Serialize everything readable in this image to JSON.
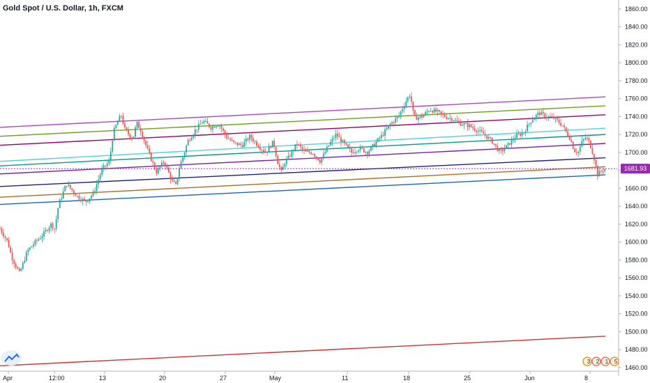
{
  "chart_data": {
    "type": "candlestick",
    "title": "Gold Spot / U.S. Dollar, 1h, FXCM",
    "y_ticks": [
      1460,
      1480,
      1500,
      1520,
      1540,
      1560,
      1580,
      1600,
      1620,
      1640,
      1660,
      1680,
      1700,
      1720,
      1740,
      1760,
      1780,
      1800,
      1820,
      1840,
      1860
    ],
    "y_tick_labels": [
      "1460.00",
      "1480.00",
      "1500.00",
      "1520.00",
      "1540.00",
      "1560.00",
      "1580.00",
      "1600.00",
      "1620.00",
      "1640.00",
      "1660.00",
      "1680.00",
      "1700.00",
      "1720.00",
      "1740.00",
      "1760.00",
      "1780.00",
      "1800.00",
      "1820.00",
      "1840.00",
      "1860.00"
    ],
    "ylim": [
      1456,
      1870
    ],
    "x_ticks": [
      "Apr",
      "12:00",
      "13",
      "20",
      "27",
      "May",
      "11",
      "18",
      "25",
      "Jun",
      "8"
    ],
    "current_price": 1681.93,
    "current_price_label": "1681.93",
    "grid": false,
    "candle_up_color": "#26a69a",
    "candle_down_color": "#ef5350",
    "price_path": [
      [
        0,
        1615
      ],
      [
        2,
        1600
      ],
      [
        3,
        1583
      ],
      [
        5,
        1565
      ],
      [
        7,
        1590
      ],
      [
        9,
        1600
      ],
      [
        11,
        1608
      ],
      [
        13,
        1620
      ],
      [
        14,
        1615
      ],
      [
        15,
        1642
      ],
      [
        17,
        1665
      ],
      [
        19,
        1655
      ],
      [
        20,
        1650
      ],
      [
        22,
        1645
      ],
      [
        24,
        1655
      ],
      [
        26,
        1680
      ],
      [
        28,
        1690
      ],
      [
        29,
        1722
      ],
      [
        30,
        1733
      ],
      [
        31,
        1742
      ],
      [
        32,
        1725
      ],
      [
        33,
        1720
      ],
      [
        34,
        1715
      ],
      [
        35,
        1733
      ],
      [
        36,
        1725
      ],
      [
        38,
        1700
      ],
      [
        40,
        1678
      ],
      [
        42,
        1690
      ],
      [
        44,
        1668
      ],
      [
        45,
        1663
      ],
      [
        46,
        1685
      ],
      [
        47,
        1697
      ],
      [
        48,
        1712
      ],
      [
        50,
        1725
      ],
      [
        52,
        1735
      ],
      [
        54,
        1728
      ],
      [
        56,
        1732
      ],
      [
        58,
        1717
      ],
      [
        60,
        1710
      ],
      [
        62,
        1708
      ],
      [
        64,
        1718
      ],
      [
        66,
        1708
      ],
      [
        68,
        1700
      ],
      [
        70,
        1712
      ],
      [
        71,
        1690
      ],
      [
        72,
        1678
      ],
      [
        73,
        1690
      ],
      [
        74,
        1695
      ],
      [
        76,
        1710
      ],
      [
        78,
        1700
      ],
      [
        80,
        1700
      ],
      [
        82,
        1690
      ],
      [
        84,
        1707
      ],
      [
        86,
        1720
      ],
      [
        88,
        1710
      ],
      [
        90,
        1700
      ],
      [
        92,
        1705
      ],
      [
        94,
        1700
      ],
      [
        96,
        1710
      ],
      [
        98,
        1720
      ],
      [
        100,
        1732
      ],
      [
        102,
        1740
      ],
      [
        104,
        1758
      ],
      [
        105,
        1765
      ],
      [
        106,
        1738
      ],
      [
        108,
        1740
      ],
      [
        110,
        1748
      ],
      [
        112,
        1745
      ],
      [
        114,
        1740
      ],
      [
        116,
        1737
      ],
      [
        118,
        1732
      ],
      [
        120,
        1730
      ],
      [
        122,
        1725
      ],
      [
        124,
        1720
      ],
      [
        126,
        1712
      ],
      [
        128,
        1700
      ],
      [
        130,
        1708
      ],
      [
        132,
        1718
      ],
      [
        134,
        1722
      ],
      [
        136,
        1736
      ],
      [
        138,
        1744
      ],
      [
        140,
        1740
      ],
      [
        142,
        1738
      ],
      [
        144,
        1730
      ],
      [
        145,
        1722
      ],
      [
        146,
        1715
      ],
      [
        147,
        1702
      ],
      [
        148,
        1700
      ],
      [
        149,
        1712
      ],
      [
        150,
        1717
      ],
      [
        151,
        1710
      ],
      [
        152,
        1695
      ],
      [
        153,
        1675
      ],
      [
        154,
        1680
      ],
      [
        155,
        1682
      ]
    ],
    "trend_lines": [
      {
        "color": "#ab47bc",
        "start": [
          0,
          1728
        ],
        "end": [
          155,
          1762
        ]
      },
      {
        "color": "#6b9f1b",
        "start": [
          0,
          1718
        ],
        "end": [
          155,
          1752
        ]
      },
      {
        "color": "#990066",
        "start": [
          0,
          1708
        ],
        "end": [
          155,
          1742
        ]
      },
      {
        "color": "#4dd0e1",
        "start": [
          0,
          1690
        ],
        "end": [
          155,
          1727
        ]
      },
      {
        "color": "#009688",
        "start": [
          0,
          1685
        ],
        "end": [
          155,
          1720
        ]
      },
      {
        "color": "#7b1fa2",
        "start": [
          0,
          1676
        ],
        "end": [
          155,
          1710
        ]
      },
      {
        "color": "#1a237e",
        "start": [
          0,
          1662
        ],
        "end": [
          155,
          1694
        ]
      },
      {
        "color": "#b26a1e",
        "start": [
          0,
          1650
        ],
        "end": [
          155,
          1684
        ]
      },
      {
        "color": "#1565c0",
        "start": [
          0,
          1642
        ],
        "end": [
          155,
          1675
        ]
      },
      {
        "color": "#d32f2f",
        "start": [
          0,
          1462
        ],
        "end": [
          155,
          1495
        ]
      }
    ],
    "current_price_line_color": "#9c27b0",
    "label_color": "#9c27b0",
    "event_badges": [
      "3",
      "2",
      "1",
      "5"
    ]
  }
}
